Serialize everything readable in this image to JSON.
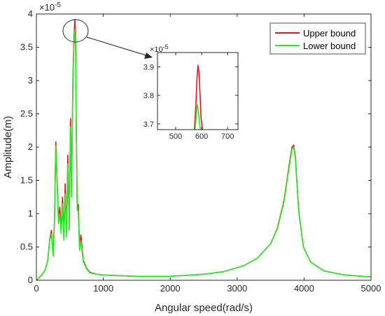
{
  "chart_data": [
    {
      "type": "line",
      "xlabel": "Angular speed(rad/s)",
      "ylabel": "Amplitude(m)",
      "xlim": [
        0,
        5000
      ],
      "ylim": [
        0,
        4.0
      ],
      "y_multiplier": "×10",
      "y_multiplier_exponent": "-5",
      "x_ticks": [
        0,
        1000,
        2000,
        3000,
        4000,
        5000
      ],
      "y_ticks": [
        0,
        0.5,
        1,
        1.5,
        2,
        2.5,
        3,
        3.5,
        4
      ],
      "grid": false,
      "legend_position": "top-right",
      "series": [
        {
          "name": "Upper bound",
          "color": "#e8141e",
          "x": [
            0,
            80,
            130,
            170,
            200,
            225,
            250,
            270,
            290,
            310,
            330,
            350,
            370,
            390,
            410,
            430,
            450,
            470,
            490,
            510,
            525,
            545,
            560,
            575,
            585,
            595,
            610,
            625,
            645,
            665,
            700,
            750,
            800,
            900,
            1000,
            1200,
            1500,
            2000,
            2500,
            2800,
            3100,
            3300,
            3500,
            3600,
            3700,
            3780,
            3820,
            3845,
            3870,
            3920,
            3990,
            4100,
            4300,
            4600,
            5000
          ],
          "y": [
            0.0,
            0.08,
            0.15,
            0.3,
            0.62,
            0.75,
            0.38,
            0.9,
            2.08,
            1.5,
            0.9,
            1.1,
            0.75,
            1.25,
            0.65,
            1.45,
            0.7,
            1.88,
            0.8,
            2.43,
            1.3,
            3.0,
            3.6,
            3.92,
            3.7,
            2.4,
            1.1,
            1.14,
            0.5,
            0.68,
            0.3,
            0.18,
            0.12,
            0.09,
            0.08,
            0.07,
            0.06,
            0.06,
            0.09,
            0.13,
            0.22,
            0.33,
            0.55,
            0.78,
            1.2,
            1.75,
            2.0,
            2.03,
            1.85,
            1.05,
            0.5,
            0.27,
            0.14,
            0.08,
            0.05
          ]
        },
        {
          "name": "Lower bound",
          "color": "#22ee22",
          "x": [
            0,
            80,
            130,
            170,
            200,
            225,
            250,
            270,
            290,
            310,
            330,
            350,
            370,
            390,
            410,
            430,
            450,
            470,
            490,
            510,
            525,
            545,
            560,
            575,
            585,
            595,
            610,
            625,
            645,
            665,
            700,
            750,
            800,
            900,
            1000,
            1200,
            1500,
            2000,
            2500,
            2800,
            3100,
            3300,
            3500,
            3600,
            3700,
            3780,
            3820,
            3845,
            3870,
            3920,
            3990,
            4100,
            4300,
            4600,
            5000
          ],
          "y": [
            0.0,
            0.08,
            0.15,
            0.3,
            0.6,
            0.7,
            0.36,
            0.86,
            2.02,
            1.45,
            0.85,
            1.0,
            0.7,
            1.15,
            0.6,
            1.3,
            0.65,
            1.75,
            0.75,
            2.3,
            1.25,
            2.9,
            3.5,
            3.77,
            3.6,
            2.3,
            1.05,
            1.04,
            0.45,
            0.6,
            0.28,
            0.17,
            0.11,
            0.09,
            0.08,
            0.07,
            0.06,
            0.06,
            0.09,
            0.13,
            0.22,
            0.33,
            0.55,
            0.77,
            1.18,
            1.72,
            1.97,
            2.0,
            1.82,
            1.03,
            0.5,
            0.27,
            0.14,
            0.08,
            0.05
          ]
        }
      ]
    },
    {
      "type": "line",
      "xlim": [
        430,
        740
      ],
      "ylim": [
        3.68,
        3.95
      ],
      "y_multiplier": "×10",
      "y_multiplier_exponent": "-5",
      "x_ticks": [
        500,
        600,
        700
      ],
      "y_ticks": [
        3.7,
        3.8,
        3.9
      ],
      "series": [
        {
          "name": "Upper bound",
          "color": "#e8141e",
          "x": [
            572,
            577,
            582,
            586,
            590,
            594,
            598,
            603
          ],
          "y": [
            3.68,
            3.75,
            3.86,
            3.905,
            3.88,
            3.8,
            3.72,
            3.68
          ]
        },
        {
          "name": "Lower bound",
          "color": "#22ee22",
          "x": [
            575,
            579,
            583,
            587,
            591,
            595
          ],
          "y": [
            3.68,
            3.73,
            3.768,
            3.75,
            3.71,
            3.68
          ]
        }
      ]
    }
  ]
}
